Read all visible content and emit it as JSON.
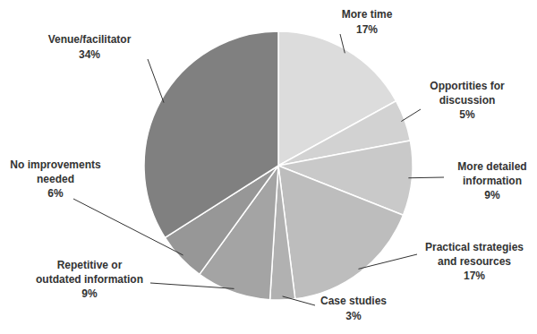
{
  "chart_data": {
    "type": "pie",
    "categories": [
      "More time",
      "Opportities for discussion",
      "More detailed information",
      "Practical strategies and resources",
      "Case studies",
      "Repetitive or outdated information",
      "No improvements needed",
      "Venue/facilitator"
    ],
    "values": [
      17,
      5,
      9,
      17,
      3,
      9,
      6,
      34
    ],
    "value_labels": [
      "17%",
      "5%",
      "9%",
      "17%",
      "3%",
      "9%",
      "6%",
      "34%"
    ],
    "colors": [
      "#dcdcdc",
      "#d2d2d2",
      "#c9c9c9",
      "#bdbdbd",
      "#b1b1b1",
      "#a4a4a4",
      "#979797",
      "#808080"
    ],
    "data_labels": true
  }
}
